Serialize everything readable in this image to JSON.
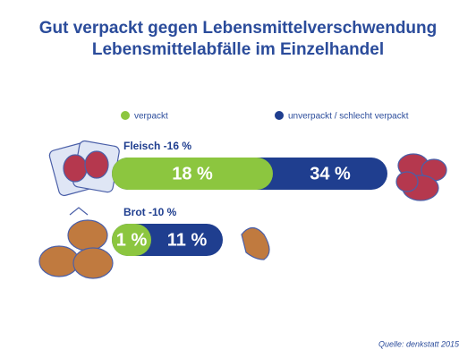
{
  "chart_data": {
    "type": "bar",
    "orientation": "horizontal",
    "mode": "overlap",
    "title": "Gut verpackt gegen Lebensmittelverschwendung",
    "subtitle": "Lebensmittelabfälle im Einzelhandel",
    "categories": [
      "Fleisch -16 %",
      "Brot -10 %"
    ],
    "series": [
      {
        "name": "verpackt",
        "color": "#8cc63f",
        "values": [
          18,
          1
        ],
        "value_labels": [
          "18 %",
          "1 %"
        ]
      },
      {
        "name": "unverpackt / schlecht verpackt",
        "color": "#1f3e8f",
        "values": [
          34,
          11
        ],
        "value_labels": [
          "34 %",
          "11 %"
        ]
      }
    ],
    "source": "Quelle: denkstatt 2015"
  }
}
